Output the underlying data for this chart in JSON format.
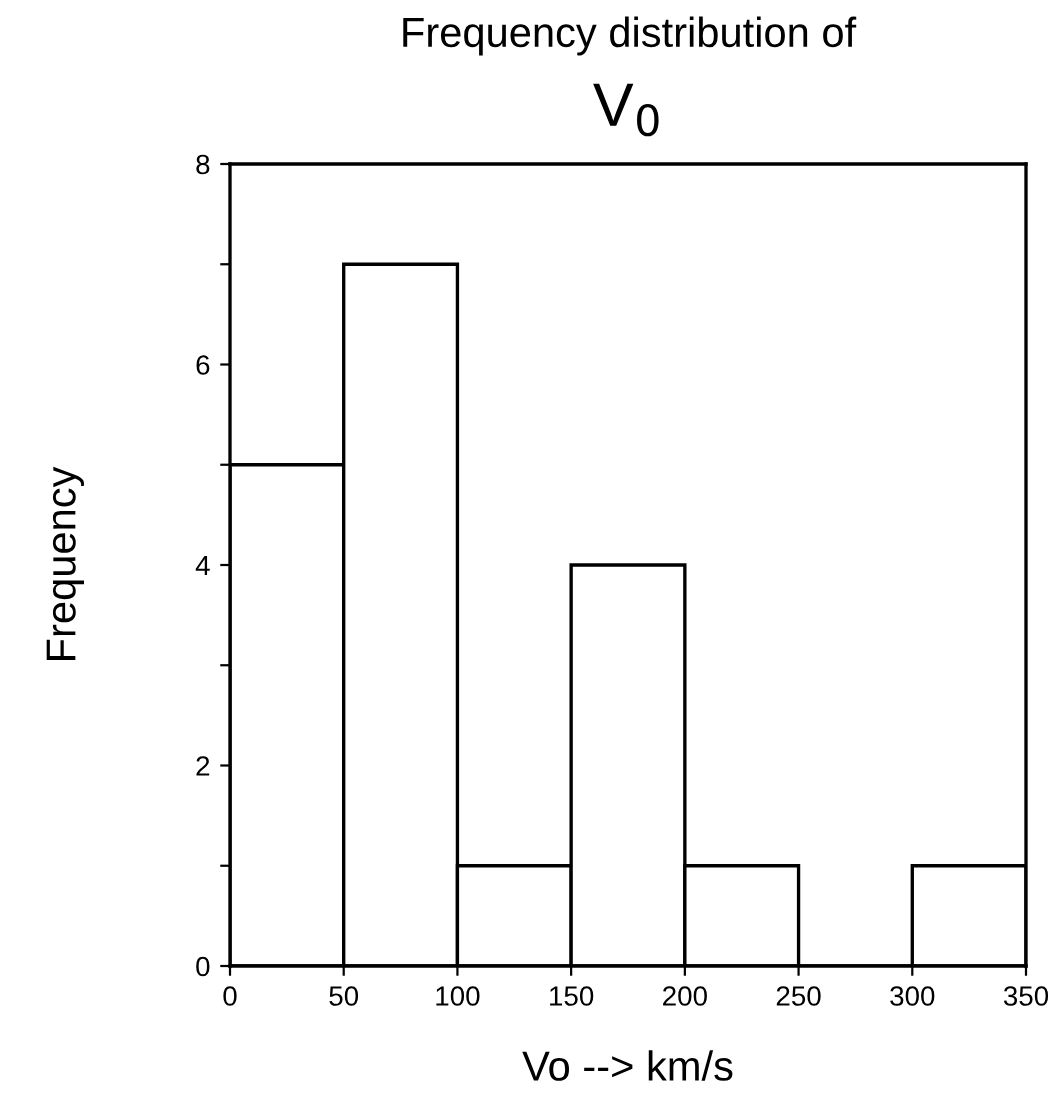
{
  "chart_data": {
    "type": "histogram",
    "title": "Frequency distribution of",
    "subtitle": "V$_{0}$",
    "xlabel": "Vo --> km/s",
    "ylabel": "Frequency",
    "bins": [
      0,
      50,
      100,
      150,
      200,
      250,
      300,
      350
    ],
    "values": [
      5,
      7,
      1,
      4,
      1,
      0,
      1
    ],
    "color": "#ffffff",
    "xlim": [
      0,
      350
    ],
    "ylim": [
      0,
      8
    ],
    "xticks": [
      0,
      50,
      100,
      150,
      200,
      250,
      300,
      350
    ],
    "yticks": [
      0,
      {
        "value": 1,
        "label": null
      },
      2,
      {
        "value": 3,
        "label": null
      },
      4,
      {
        "value": 5,
        "label": null
      },
      6,
      {
        "value": 7,
        "label": null
      },
      8
    ],
    "grid": false,
    "legend": false
  }
}
